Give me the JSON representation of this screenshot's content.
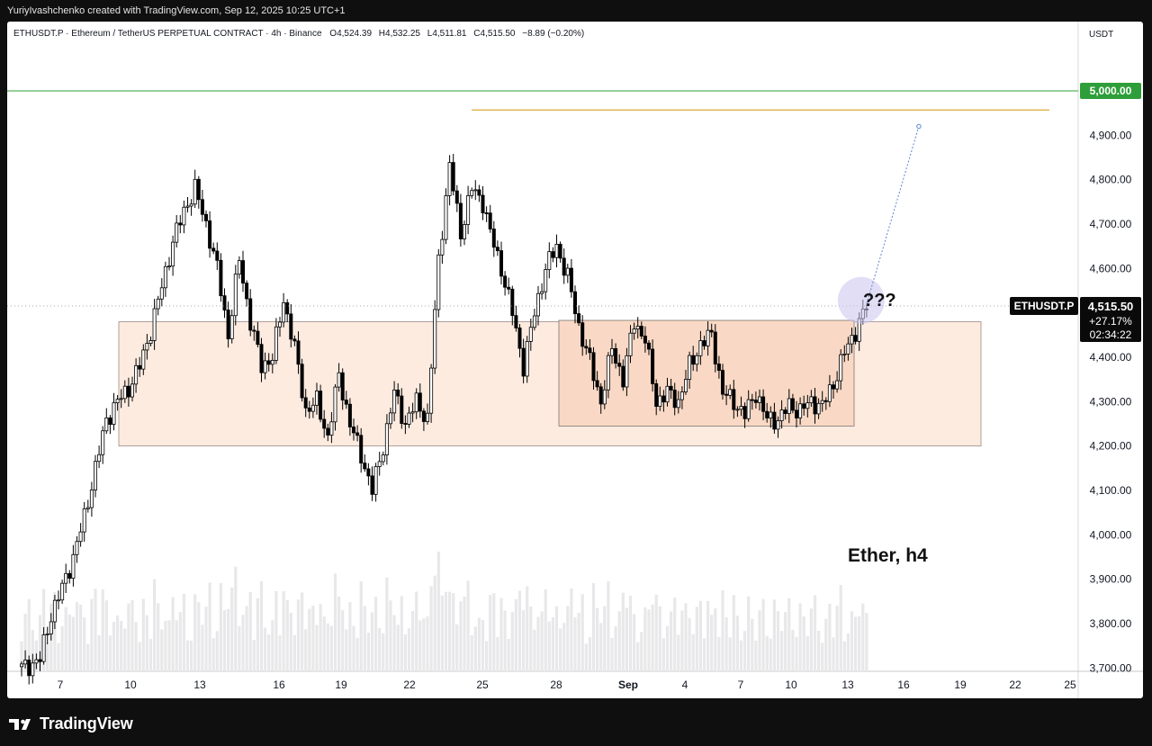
{
  "header": {
    "credit": "YuriyIvashchenko created with TradingView.com, Sep 12, 2025 10:25 UTC+1"
  },
  "instrument": {
    "symbol_line": "ETHUSDT.P · Ethereum / TetherUS PERPETUAL CONTRACT · 4h · Binance",
    "open_label": "O",
    "open": "4,524.39",
    "high_label": "H",
    "high": "4,532.25",
    "low_label": "L",
    "low": "4,511.81",
    "close_label": "C",
    "close": "4,515.50",
    "change": "−8.89 (−0.20%)"
  },
  "price_badge": {
    "symbol": "ETHUSDT.P",
    "price": "4,515.50",
    "change": "+27.17%",
    "countdown": "02:34:22"
  },
  "level_label": "5,000.00",
  "annotation_question": "???",
  "annotation_title": "Ether, h4",
  "footer": {
    "logo_text": "TradingView"
  },
  "colors": {
    "up": "#ffffff",
    "down": "#000000",
    "range_fill": "#fdebe0",
    "range_inner": "#f9d9c5",
    "resistance_line": "#2e9e3a",
    "high_line": "#d6a21e",
    "projection": "#5b84d6",
    "highlight": "#c9c2ee"
  },
  "chart_data": {
    "type": "candlestick",
    "timeframe": "4h",
    "y_axis": {
      "unit": "USDT",
      "ticks": [
        "4,900.00",
        "4,800.00",
        "4,700.00",
        "4,600.00",
        "4,500.00",
        "4,400.00",
        "4,300.00",
        "4,200.00",
        "4,100.00",
        "4,000.00",
        "3,900.00",
        "3,800.00",
        "3,700.00"
      ],
      "range": [
        3690,
        5140
      ]
    },
    "x_axis": {
      "ticks": [
        "7",
        "10",
        "13",
        "16",
        "19",
        "22",
        "25",
        "28",
        "Sep",
        "4",
        "7",
        "10",
        "13",
        "16",
        "19",
        "22",
        "25"
      ]
    },
    "levels": [
      {
        "name": "resistance",
        "price": 5000
      },
      {
        "name": "recent-high",
        "price": 4957
      }
    ],
    "zones": [
      {
        "name": "outer-range",
        "low": 4200,
        "high": 4480
      },
      {
        "name": "inner-range",
        "low": 4245,
        "high": 4483
      }
    ],
    "projection": {
      "from": 4520,
      "to": 4920
    },
    "pivots": [
      [
        0,
        3700
      ],
      [
        2,
        3705
      ],
      [
        5,
        3720
      ],
      [
        8,
        3820
      ],
      [
        11,
        3880
      ],
      [
        14,
        3950
      ],
      [
        17,
        4040
      ],
      [
        20,
        4150
      ],
      [
        23,
        4260
      ],
      [
        26,
        4300
      ],
      [
        29,
        4330
      ],
      [
        32,
        4380
      ],
      [
        35,
        4460
      ],
      [
        38,
        4560
      ],
      [
        41,
        4660
      ],
      [
        44,
        4730
      ],
      [
        47,
        4780
      ],
      [
        50,
        4700
      ],
      [
        53,
        4600
      ],
      [
        56,
        4450
      ],
      [
        59,
        4620
      ],
      [
        62,
        4480
      ],
      [
        65,
        4380
      ],
      [
        68,
        4400
      ],
      [
        71,
        4530
      ],
      [
        74,
        4420
      ],
      [
        77,
        4280
      ],
      [
        80,
        4300
      ],
      [
        83,
        4220
      ],
      [
        86,
        4360
      ],
      [
        89,
        4250
      ],
      [
        92,
        4180
      ],
      [
        95,
        4100
      ],
      [
        98,
        4200
      ],
      [
        101,
        4320
      ],
      [
        104,
        4250
      ],
      [
        107,
        4300
      ],
      [
        110,
        4260
      ],
      [
        113,
        4620
      ],
      [
        116,
        4830
      ],
      [
        119,
        4680
      ],
      [
        122,
        4780
      ],
      [
        125,
        4750
      ],
      [
        127,
        4680
      ],
      [
        130,
        4600
      ],
      [
        133,
        4500
      ],
      [
        136,
        4380
      ],
      [
        139,
        4500
      ],
      [
        142,
        4600
      ],
      [
        145,
        4650
      ],
      [
        148,
        4580
      ],
      [
        151,
        4470
      ],
      [
        154,
        4390
      ],
      [
        157,
        4300
      ],
      [
        160,
        4420
      ],
      [
        163,
        4350
      ],
      [
        166,
        4480
      ],
      [
        169,
        4440
      ],
      [
        172,
        4300
      ],
      [
        175,
        4320
      ],
      [
        178,
        4300
      ],
      [
        181,
        4380
      ],
      [
        184,
        4430
      ],
      [
        187,
        4450
      ],
      [
        190,
        4320
      ],
      [
        193,
        4300
      ],
      [
        196,
        4270
      ],
      [
        199,
        4320
      ],
      [
        202,
        4260
      ],
      [
        205,
        4260
      ],
      [
        208,
        4290
      ],
      [
        211,
        4280
      ],
      [
        214,
        4300
      ],
      [
        217,
        4290
      ],
      [
        220,
        4340
      ],
      [
        223,
        4410
      ],
      [
        226,
        4460
      ],
      [
        229,
        4515
      ]
    ]
  }
}
